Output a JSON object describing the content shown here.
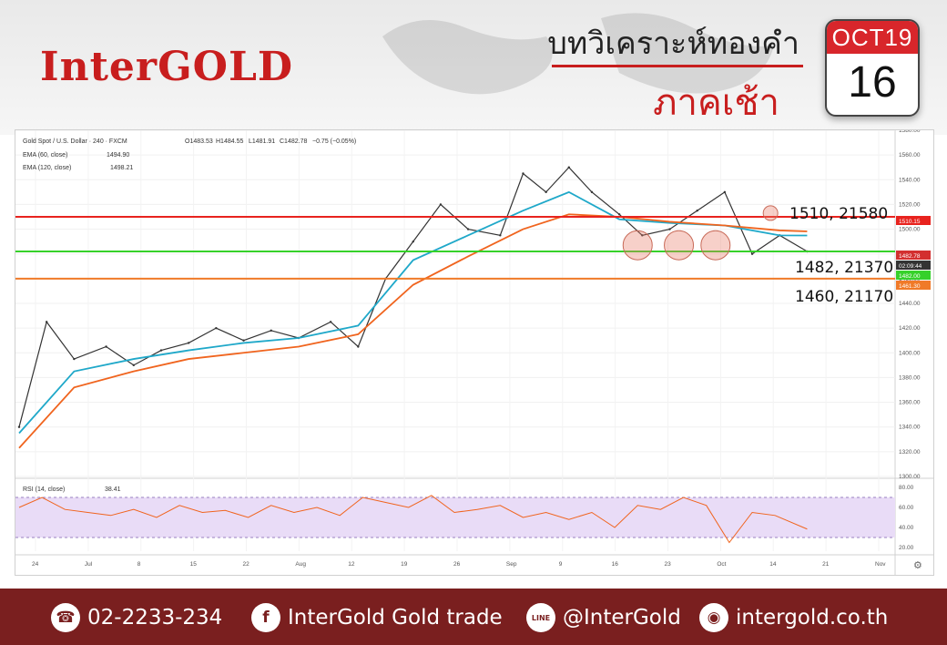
{
  "brand": "InterGOLD",
  "header": {
    "title_line1": "บทวิเคราะห์ทองคำ",
    "title_line2": "ภาคเช้า",
    "calendar_month": "OCT19",
    "calendar_day": "16"
  },
  "legend": {
    "symbol": "Gold Spot / U.S. Dollar · 240 · FXCM",
    "open": "O1483.53",
    "high": "H1484.55",
    "low": "L1481.91",
    "close": "C1482.78",
    "change": "−0.75 (−0.05%)",
    "ema60_label": "EMA (60, close)",
    "ema60_value": "1494.90",
    "ema120_label": "EMA (120, close)",
    "ema120_value": "1498.21",
    "rsi_label": "RSI (14, close)",
    "rsi_value": "38.41"
  },
  "levels": [
    {
      "label": "1510, 21580",
      "price": 1510,
      "color": "#e8231e"
    },
    {
      "label": "1482, 21370",
      "price": 1482,
      "color": "#36d12a"
    },
    {
      "label": "1460, 21170",
      "price": 1460,
      "color": "#f07a28"
    }
  ],
  "price_tags": {
    "resistance": "1510.15",
    "last": "1482.78",
    "countdown": "02:09:44",
    "support_green": "1482.00",
    "support_orange": "1461.30"
  },
  "chart_data": {
    "type": "line",
    "title": "Gold Spot / U.S. Dollar · 240 · FXCM",
    "ylim": [
      1300,
      1580
    ],
    "yticks": [
      "1580.00",
      "1560.00",
      "1540.00",
      "1520.00",
      "1500.00",
      "1480.00",
      "1460.00",
      "1440.00",
      "1420.00",
      "1400.00",
      "1380.00",
      "1360.00",
      "1340.00",
      "1320.00",
      "1300.00"
    ],
    "xticks": [
      "24",
      "Jul",
      "8",
      "15",
      "22",
      "Aug",
      "12",
      "19",
      "26",
      "Sep",
      "9",
      "16",
      "23",
      "Oct",
      "14",
      "21",
      "Nov"
    ],
    "series": [
      {
        "name": "Gold Spot / U.S. Dollar",
        "color": "#333333",
        "x": [
          0,
          12,
          24,
          38,
          50,
          62,
          74,
          86,
          98,
          110,
          122,
          136,
          148,
          160,
          172,
          184,
          196,
          210,
          220,
          230,
          240,
          250,
          262,
          272,
          284,
          296,
          308,
          320,
          332,
          344
        ],
        "values": [
          1340,
          1425,
          1395,
          1405,
          1390,
          1402,
          1408,
          1420,
          1410,
          1418,
          1412,
          1425,
          1405,
          1460,
          1490,
          1520,
          1500,
          1495,
          1545,
          1530,
          1550,
          1530,
          1512,
          1495,
          1500,
          1515,
          1530,
          1480,
          1495,
          1482
        ]
      },
      {
        "name": "EMA (60, close)",
        "color": "#1fa8c9",
        "x": [
          0,
          24,
          50,
          74,
          98,
          122,
          148,
          172,
          196,
          220,
          240,
          262,
          284,
          308,
          332,
          344
        ],
        "values": [
          1335,
          1385,
          1395,
          1402,
          1408,
          1412,
          1422,
          1475,
          1495,
          1515,
          1530,
          1508,
          1505,
          1503,
          1495,
          1494.9
        ]
      },
      {
        "name": "EMA (120, close)",
        "color": "#f0641e",
        "x": [
          0,
          24,
          50,
          74,
          98,
          122,
          148,
          172,
          196,
          220,
          240,
          262,
          284,
          308,
          332,
          344
        ],
        "values": [
          1323,
          1372,
          1385,
          1395,
          1400,
          1405,
          1415,
          1455,
          1478,
          1500,
          1512,
          1510,
          1506,
          1503,
          1499,
          1498.21
        ]
      }
    ],
    "rsi": {
      "name": "RSI (14, close)",
      "ylim": [
        20,
        80
      ],
      "yticks": [
        "80.00",
        "60.00",
        "40.00",
        "20.00"
      ],
      "x": [
        0,
        10,
        20,
        30,
        40,
        50,
        60,
        70,
        80,
        90,
        100,
        110,
        120,
        130,
        140,
        150,
        160,
        170,
        180,
        190,
        200,
        210,
        220,
        230,
        240,
        250,
        260,
        270,
        280,
        290,
        300,
        310,
        320,
        330,
        344
      ],
      "values": [
        60,
        70,
        58,
        55,
        52,
        58,
        50,
        62,
        55,
        57,
        50,
        62,
        55,
        60,
        52,
        70,
        65,
        60,
        72,
        55,
        58,
        62,
        50,
        55,
        48,
        55,
        40,
        62,
        58,
        70,
        62,
        25,
        55,
        52,
        38.41
      ]
    }
  },
  "footer": {
    "phone": "02-2233-234",
    "facebook": "InterGold Gold trade",
    "line": "@InterGold",
    "website": "intergold.co.th"
  }
}
